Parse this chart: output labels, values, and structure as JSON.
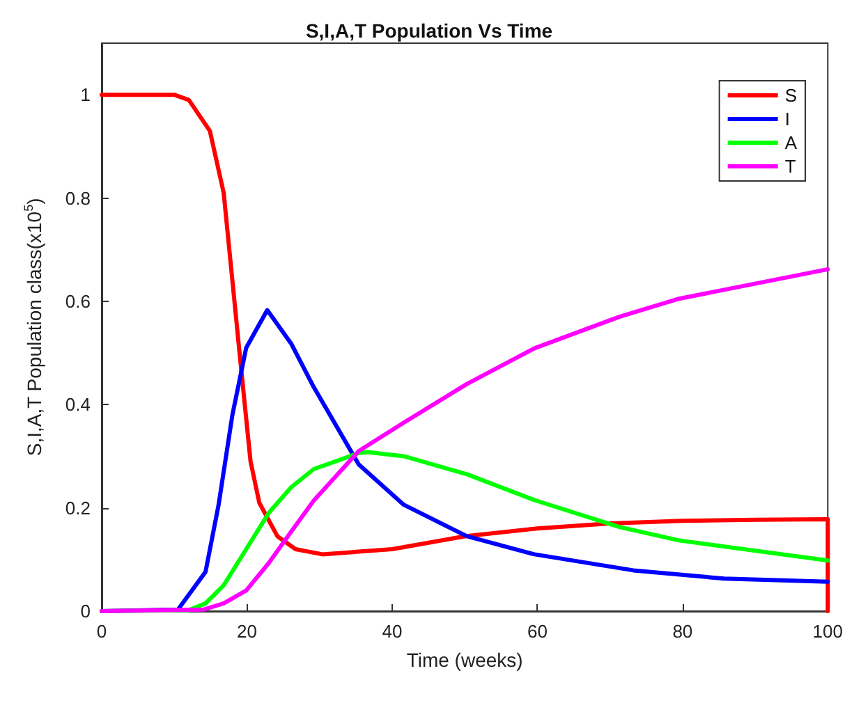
{
  "chart_data": {
    "type": "line",
    "title": "S,I,A,T Population Vs Time",
    "xlabel": "Time (weeks)",
    "ylabel": "S,I,A,T Population class(x10$^{5}$)",
    "xlim": [
      0,
      100
    ],
    "xticks": [
      0,
      20,
      40,
      60,
      80,
      100
    ],
    "ylim": [
      0,
      1.1
    ],
    "yticks": [
      0,
      0.2,
      0.4,
      0.6,
      0.8,
      1
    ],
    "grid": false,
    "legend": "top right",
    "marker": "none",
    "line_style": "solid",
    "series": [
      {
        "name": "S",
        "color": "#ff0000",
        "x": [
          0,
          10,
          12,
          14.9,
          16.8,
          18,
          19.2,
          20.5,
          21.7,
          24.2,
          26.7,
          30.4,
          40,
          50,
          60,
          70,
          80,
          90,
          100,
          100
        ],
        "values": [
          1,
          1,
          0.99,
          0.93,
          0.81,
          0.64,
          0.47,
          0.29,
          0.21,
          0.145,
          0.12,
          0.11,
          0.12,
          0.145,
          0.16,
          0.17,
          0.175,
          0.177,
          0.178,
          0
        ]
      },
      {
        "name": "I",
        "color": "#0000ff",
        "x": [
          0,
          10.5,
          14.3,
          16.1,
          18,
          19.9,
          22.8,
          26.1,
          29.2,
          35.4,
          41.6,
          50.3,
          59.6,
          73.2,
          85.7,
          100
        ],
        "values": [
          0,
          0.003,
          0.076,
          0.206,
          0.38,
          0.51,
          0.583,
          0.518,
          0.434,
          0.284,
          0.206,
          0.145,
          0.11,
          0.079,
          0.063,
          0.057
        ]
      },
      {
        "name": "A",
        "color": "#00ff00",
        "x": [
          0,
          12,
          14.3,
          16.8,
          19.9,
          23,
          26.1,
          29.2,
          35.4,
          36.6,
          41.6,
          50.3,
          59.6,
          71.3,
          79.5,
          100
        ],
        "values": [
          0,
          0.002,
          0.015,
          0.05,
          0.12,
          0.19,
          0.24,
          0.275,
          0.306,
          0.308,
          0.3,
          0.265,
          0.215,
          0.163,
          0.137,
          0.098
        ]
      },
      {
        "name": "T",
        "color": "#ff00ff",
        "x": [
          0,
          14,
          16.8,
          19.9,
          23,
          26.1,
          29.2,
          35.4,
          41.6,
          50.3,
          59.6,
          71.3,
          79.5,
          100
        ],
        "values": [
          0,
          0.003,
          0.015,
          0.04,
          0.093,
          0.154,
          0.214,
          0.31,
          0.365,
          0.44,
          0.509,
          0.57,
          0.605,
          0.662
        ]
      }
    ]
  }
}
